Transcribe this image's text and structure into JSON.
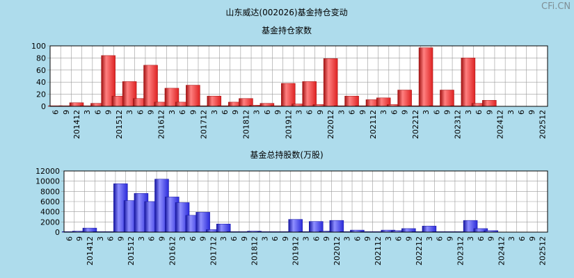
{
  "header": {
    "title": "山东威达(002026)基金持仓变动",
    "watermark": "CFi.CN"
  },
  "chart_data": [
    {
      "type": "bar",
      "title": "基金持仓家数",
      "ylim": [
        0,
        100
      ],
      "yticks": [
        0,
        20,
        40,
        60,
        80,
        100
      ],
      "grid": true,
      "color": "#dd2222",
      "categories": [
        "201406",
        "201409",
        "201412",
        "201503",
        "201506",
        "201509",
        "201512",
        "201603",
        "201606",
        "201609",
        "201612",
        "201703",
        "201706",
        "201709",
        "201712",
        "201803",
        "201806",
        "201809",
        "201812",
        "201903",
        "201906",
        "201909",
        "201912",
        "202003",
        "202006",
        "202009",
        "202012",
        "202103",
        "202106",
        "202109",
        "202112",
        "202203",
        "202206",
        "202209",
        "202212",
        "202303",
        "202306",
        "202309",
        "202312",
        "202403",
        "202406",
        "202409",
        "202412",
        "202503",
        "202506",
        "202509",
        "202512"
      ],
      "tick_labels": [
        "6",
        "9",
        "201412",
        "3",
        "6",
        "9",
        "201512",
        "3",
        "6",
        "9",
        "201612",
        "3",
        "6",
        "9",
        "201712",
        "3",
        "6",
        "9",
        "201812",
        "3",
        "6",
        "9",
        "201912",
        "3",
        "6",
        "9",
        "202012",
        "3",
        "6",
        "9",
        "202112",
        "3",
        "6",
        "9",
        "202212",
        "3",
        "6",
        "9",
        "202312",
        "3",
        "6",
        "9",
        "202412",
        "3",
        "6",
        "9",
        "202512"
      ],
      "values": [
        1,
        1,
        6,
        1,
        5,
        84,
        17,
        41,
        13,
        68,
        7,
        30,
        7,
        35,
        1,
        17,
        1,
        7,
        13,
        2,
        5,
        1,
        38,
        4,
        41,
        3,
        79,
        1,
        17,
        1,
        11,
        14,
        3,
        27,
        1,
        97,
        1,
        27,
        1,
        80,
        5,
        10,
        0,
        0,
        0,
        0,
        0
      ]
    },
    {
      "type": "bar",
      "title": "基金总持股数(万股)",
      "ylim": [
        0,
        12000
      ],
      "yticks": [
        0,
        2000,
        4000,
        6000,
        8000,
        10000,
        12000
      ],
      "grid": true,
      "color": "#2a2ad8",
      "categories": [
        "201406",
        "201409",
        "201412",
        "201503",
        "201506",
        "201509",
        "201512",
        "201603",
        "201606",
        "201609",
        "201612",
        "201703",
        "201706",
        "201709",
        "201712",
        "201803",
        "201806",
        "201809",
        "201812",
        "201903",
        "201906",
        "201909",
        "201912",
        "202003",
        "202006",
        "202009",
        "202012",
        "202103",
        "202106",
        "202109",
        "202112",
        "202203",
        "202206",
        "202209",
        "202212",
        "202303",
        "202306",
        "202309",
        "202312",
        "202403",
        "202406",
        "202409",
        "202412",
        "202503",
        "202506",
        "202509",
        "202512"
      ],
      "tick_labels": [
        "6",
        "9",
        "201412",
        "3",
        "6",
        "9",
        "201512",
        "3",
        "6",
        "9",
        "201612",
        "3",
        "6",
        "9",
        "201712",
        "3",
        "6",
        "9",
        "201812",
        "3",
        "6",
        "9",
        "201912",
        "3",
        "6",
        "9",
        "202012",
        "3",
        "6",
        "9",
        "202112",
        "3",
        "6",
        "9",
        "202212",
        "3",
        "6",
        "9",
        "202312",
        "3",
        "6",
        "9",
        "202412",
        "3",
        "6",
        "9",
        "202512"
      ],
      "values": [
        100,
        200,
        800,
        100,
        100,
        9500,
        6200,
        7600,
        6000,
        10400,
        6900,
        5800,
        3300,
        3900,
        500,
        1600,
        100,
        100,
        200,
        100,
        100,
        100,
        2500,
        100,
        2100,
        200,
        2300,
        100,
        400,
        100,
        100,
        400,
        300,
        700,
        100,
        1200,
        100,
        100,
        100,
        2300,
        700,
        300,
        0,
        0,
        0,
        0,
        0
      ]
    }
  ]
}
